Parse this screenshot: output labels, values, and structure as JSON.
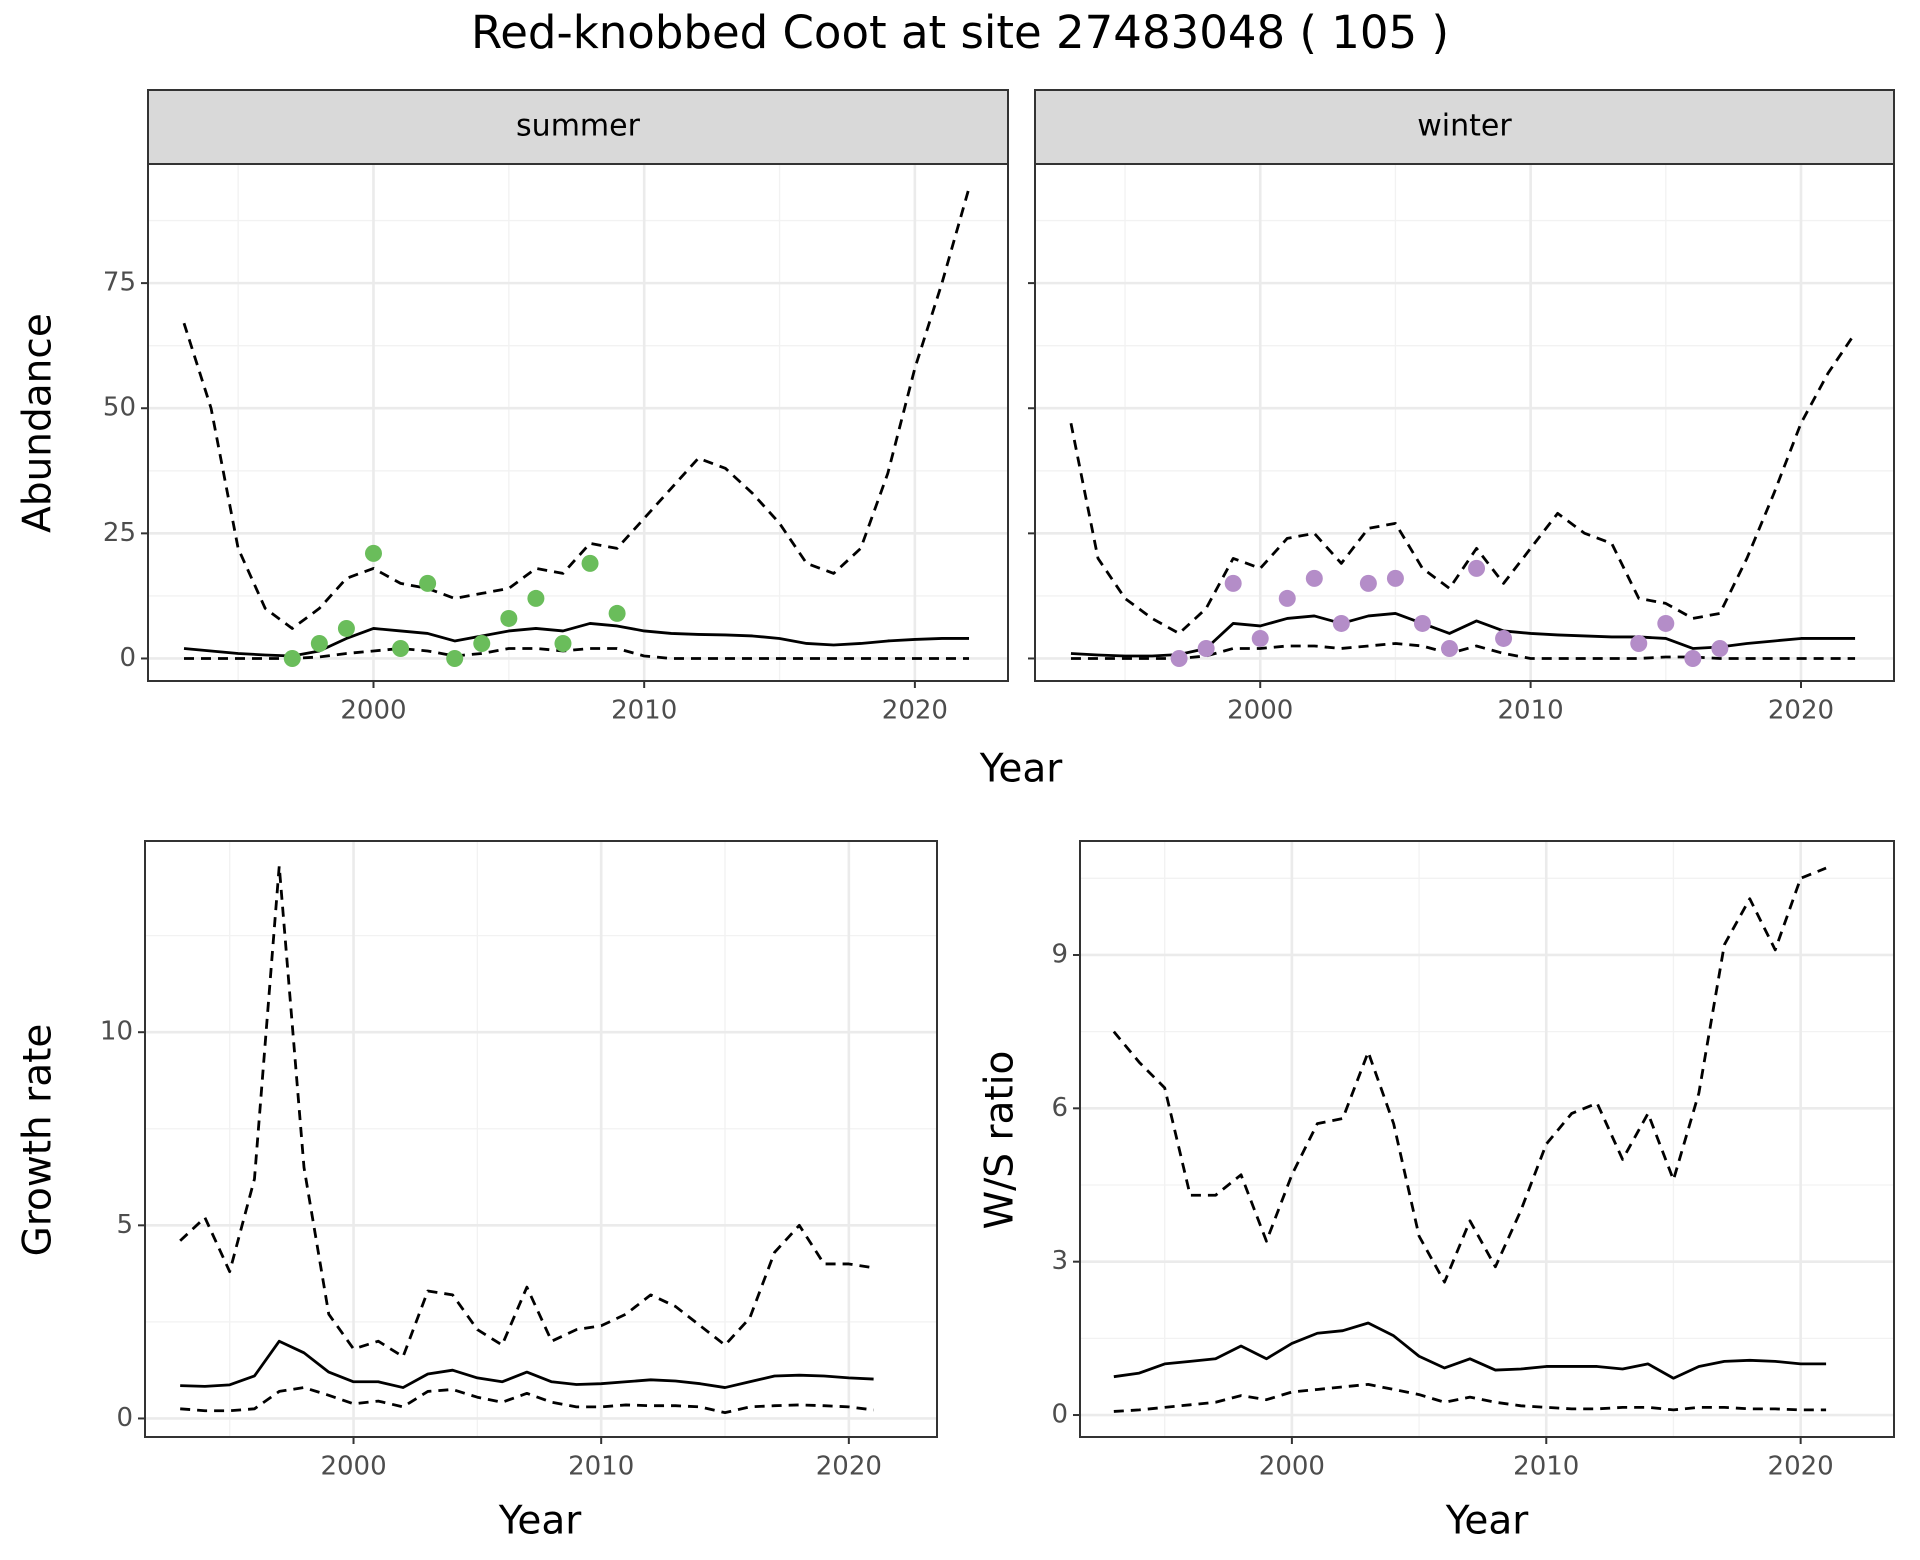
{
  "title": "Red-knobbed Coot at site 27483048 ( 105 )",
  "chart_data": [
    {
      "type": "line",
      "strip": "summer",
      "x_label": "Year",
      "y_label": "Abundance",
      "x": [
        1993,
        1994,
        1995,
        1996,
        1997,
        1998,
        1999,
        2000,
        2001,
        2002,
        2003,
        2004,
        2005,
        2006,
        2007,
        2008,
        2009,
        2010,
        2011,
        2012,
        2013,
        2014,
        2015,
        2016,
        2017,
        2018,
        2019,
        2020,
        2021,
        2022
      ],
      "series": [
        {
          "color": "#000000",
          "dash": true,
          "values": [
            67,
            50,
            22,
            10,
            6,
            10,
            16,
            18,
            15,
            14,
            12,
            13,
            14,
            18,
            17,
            23,
            22,
            28,
            34,
            40,
            38,
            33,
            27,
            19,
            17,
            22,
            37,
            58,
            75,
            94
          ]
        },
        {
          "color": "#000000",
          "dash": false,
          "values": [
            2,
            1.5,
            1,
            0.7,
            0.5,
            1.5,
            4,
            6,
            5.5,
            5,
            3.5,
            4.5,
            5.5,
            6,
            5.5,
            7,
            6.5,
            5.5,
            5,
            4.8,
            4.7,
            4.5,
            4,
            3,
            2.7,
            3,
            3.5,
            3.8,
            4,
            4
          ]
        },
        {
          "color": "#000000",
          "dash": true,
          "values": [
            0,
            0,
            0,
            0,
            0,
            0.3,
            1,
            1.5,
            2,
            1.5,
            0.5,
            1,
            2,
            2,
            1.5,
            2,
            2,
            0.5,
            0,
            0,
            0,
            0,
            0,
            0,
            0,
            0,
            0,
            0,
            0,
            0
          ]
        }
      ],
      "points": {
        "color": "#6abd5b",
        "x": [
          1997,
          1998,
          1999,
          2000,
          2001,
          2002,
          2003,
          2004,
          2005,
          2006,
          2007,
          2008,
          2009
        ],
        "values": [
          0,
          3,
          6,
          21,
          2,
          15,
          0,
          3,
          8,
          12,
          3,
          19,
          9
        ]
      },
      "xlim": [
        1991.67,
        2023.44
      ],
      "ylim": [
        -4.5,
        98.8
      ],
      "xticks": [
        2000,
        2010,
        2020
      ],
      "yticks": [
        0,
        25,
        50,
        75
      ],
      "x_minor_grid": [
        1995,
        2005,
        2015
      ],
      "y_minor_grid": [
        12.5,
        37.5,
        62.5,
        87.5
      ],
      "y_tick_labels": true
    },
    {
      "type": "line",
      "strip": "winter",
      "x": [
        1993,
        1994,
        1995,
        1996,
        1997,
        1998,
        1999,
        2000,
        2001,
        2002,
        2003,
        2004,
        2005,
        2006,
        2007,
        2008,
        2009,
        2010,
        2011,
        2012,
        2013,
        2014,
        2015,
        2016,
        2017,
        2018,
        2019,
        2020,
        2021,
        2022
      ],
      "series": [
        {
          "color": "#000000",
          "dash": true,
          "values": [
            47,
            20,
            12,
            8,
            5,
            10,
            20,
            18,
            24,
            25,
            19,
            26,
            27,
            18,
            14,
            22,
            15,
            22,
            29,
            25,
            23,
            12,
            11,
            8,
            9,
            20,
            33,
            47,
            57,
            65
          ]
        },
        {
          "color": "#000000",
          "dash": false,
          "values": [
            1,
            0.7,
            0.5,
            0.5,
            0.8,
            2,
            7,
            6.5,
            8,
            8.5,
            7,
            8.5,
            9,
            7,
            5,
            7.5,
            5.5,
            5,
            4.7,
            4.5,
            4.3,
            4.3,
            4,
            2,
            2.3,
            3,
            3.5,
            4,
            4,
            4
          ]
        },
        {
          "color": "#000000",
          "dash": true,
          "values": [
            0,
            0,
            0,
            0,
            0,
            0.5,
            2,
            2,
            2.5,
            2.5,
            2,
            2.5,
            3,
            2.5,
            1,
            2.5,
            1,
            0,
            0,
            0,
            0,
            0,
            0.3,
            0.3,
            0,
            0,
            0,
            0,
            0,
            0
          ]
        }
      ],
      "points": {
        "color": "#b48dc8",
        "x": [
          1997,
          1998,
          1999,
          2000,
          2001,
          2002,
          2003,
          2004,
          2005,
          2006,
          2007,
          2008,
          2009,
          2014,
          2015,
          2016,
          2017
        ],
        "values": [
          0,
          2,
          15,
          4,
          12,
          16,
          7,
          15,
          16,
          7,
          2,
          18,
          4,
          3,
          7,
          0,
          2
        ]
      },
      "xlim": [
        1991.67,
        2023.44
      ],
      "ylim": [
        -4.5,
        98.8
      ],
      "xticks": [
        2000,
        2010,
        2020
      ],
      "yticks": [
        0,
        25,
        50,
        75
      ],
      "x_minor_grid": [
        1995,
        2005,
        2015
      ],
      "y_minor_grid": [
        12.5,
        37.5,
        62.5,
        87.5
      ],
      "y_tick_labels": false
    },
    {
      "type": "line",
      "x_label": "Year",
      "y_label": "Growth rate",
      "x": [
        1993,
        1994,
        1995,
        1996,
        1997,
        1998,
        1999,
        2000,
        2001,
        2002,
        2003,
        2004,
        2005,
        2006,
        2007,
        2008,
        2009,
        2010,
        2011,
        2012,
        2013,
        2014,
        2015,
        2016,
        2017,
        2018,
        2019,
        2020,
        2021
      ],
      "series": [
        {
          "color": "#000000",
          "dash": true,
          "values": [
            4.6,
            5.2,
            3.8,
            6.2,
            14.3,
            6.5,
            2.7,
            1.8,
            2.0,
            1.6,
            3.3,
            3.2,
            2.3,
            1.9,
            3.4,
            2.0,
            2.3,
            2.4,
            2.7,
            3.2,
            2.9,
            2.4,
            1.9,
            2.6,
            4.3,
            5.0,
            4.0,
            4.0,
            3.9
          ]
        },
        {
          "color": "#000000",
          "dash": false,
          "values": [
            0.85,
            0.83,
            0.87,
            1.1,
            2.0,
            1.7,
            1.2,
            0.95,
            0.95,
            0.8,
            1.15,
            1.25,
            1.05,
            0.95,
            1.2,
            0.95,
            0.88,
            0.9,
            0.95,
            1.0,
            0.97,
            0.9,
            0.8,
            0.95,
            1.1,
            1.12,
            1.1,
            1.05,
            1.02
          ]
        },
        {
          "color": "#000000",
          "dash": true,
          "values": [
            0.25,
            0.2,
            0.2,
            0.25,
            0.7,
            0.8,
            0.6,
            0.38,
            0.45,
            0.3,
            0.7,
            0.75,
            0.55,
            0.42,
            0.65,
            0.42,
            0.3,
            0.3,
            0.35,
            0.33,
            0.33,
            0.3,
            0.15,
            0.3,
            0.33,
            0.35,
            0.33,
            0.3,
            0.22
          ]
        }
      ],
      "xlim": [
        1991.58,
        2023.56
      ],
      "ylim": [
        -0.48,
        14.95
      ],
      "xticks": [
        2000,
        2010,
        2020
      ],
      "yticks": [
        0,
        5,
        10
      ],
      "x_minor_grid": [
        1995,
        2005,
        2015
      ],
      "y_minor_grid": [
        2.5,
        7.5,
        12.5
      ],
      "y_tick_labels": true
    },
    {
      "type": "line",
      "x_label": "Year",
      "y_label": "W/S ratio",
      "x": [
        1993,
        1994,
        1995,
        1996,
        1997,
        1998,
        1999,
        2000,
        2001,
        2002,
        2003,
        2004,
        2005,
        2006,
        2007,
        2008,
        2009,
        2010,
        2011,
        2012,
        2013,
        2014,
        2015,
        2016,
        2017,
        2018,
        2019,
        2020,
        2021
      ],
      "series": [
        {
          "color": "#000000",
          "dash": true,
          "values": [
            7.5,
            6.9,
            6.4,
            4.3,
            4.3,
            4.7,
            3.4,
            4.7,
            5.7,
            5.8,
            7.1,
            5.7,
            3.5,
            2.6,
            3.8,
            2.9,
            4.0,
            5.3,
            5.9,
            6.1,
            5.0,
            5.9,
            4.6,
            6.3,
            9.2,
            10.1,
            9.1,
            10.5,
            10.7
          ]
        },
        {
          "color": "#000000",
          "dash": false,
          "values": [
            0.75,
            0.82,
            1.0,
            1.05,
            1.1,
            1.35,
            1.1,
            1.4,
            1.6,
            1.65,
            1.8,
            1.55,
            1.15,
            0.92,
            1.1,
            0.88,
            0.9,
            0.95,
            0.95,
            0.95,
            0.9,
            1.0,
            0.72,
            0.95,
            1.05,
            1.07,
            1.05,
            1.0,
            1.0
          ]
        },
        {
          "color": "#000000",
          "dash": true,
          "values": [
            0.07,
            0.1,
            0.15,
            0.2,
            0.25,
            0.38,
            0.3,
            0.45,
            0.5,
            0.55,
            0.6,
            0.5,
            0.4,
            0.25,
            0.35,
            0.25,
            0.18,
            0.15,
            0.12,
            0.12,
            0.15,
            0.15,
            0.1,
            0.15,
            0.15,
            0.12,
            0.12,
            0.1,
            0.1
          ]
        }
      ],
      "xlim": [
        1991.67,
        2023.67
      ],
      "ylim": [
        -0.43,
        11.23
      ],
      "xticks": [
        2000,
        2010,
        2020
      ],
      "yticks": [
        0,
        3,
        6,
        9
      ],
      "x_minor_grid": [
        1995,
        2005,
        2015
      ],
      "y_minor_grid": [
        1.5,
        4.5,
        7.5,
        10.5
      ],
      "y_tick_labels": true
    }
  ]
}
